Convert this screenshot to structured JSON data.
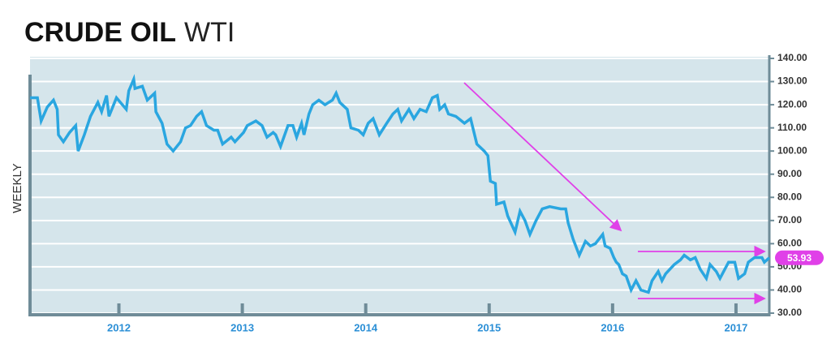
{
  "chart_data": {
    "type": "line",
    "title": "CRUDE OIL",
    "subtitle": "WTI",
    "ylabel": "WEEKLY",
    "color": "#2aa6e0",
    "grid": true,
    "xlim": [
      2011.28,
      2017.27
    ],
    "xticks": [
      2012,
      2013,
      2014,
      2015,
      2016,
      2017
    ],
    "ylim": [
      30,
      140
    ],
    "yticks": [
      {
        "value": 30,
        "label": "30.00"
      },
      {
        "value": 40,
        "label": "40.00"
      },
      {
        "value": 50,
        "label": "50.00"
      },
      {
        "value": 60,
        "label": "60.00"
      },
      {
        "value": 70,
        "label": "70.00"
      },
      {
        "value": 80,
        "label": "80.00"
      },
      {
        "value": 90,
        "label": "90.00"
      },
      {
        "value": 100,
        "label": "100.00"
      },
      {
        "value": 110,
        "label": "110.00"
      },
      {
        "value": 120,
        "label": "120.00"
      },
      {
        "value": 130,
        "label": "130.00"
      },
      {
        "value": 140,
        "label": "140.00"
      }
    ],
    "x": [
      2011.28,
      2011.34,
      2011.37,
      2011.42,
      2011.47,
      2011.5,
      2011.51,
      2011.55,
      2011.6,
      2011.65,
      2011.67,
      2011.72,
      2011.77,
      2011.83,
      2011.86,
      2011.9,
      2011.92,
      2011.98,
      2012.06,
      2012.08,
      2012.12,
      2012.13,
      2012.19,
      2012.23,
      2012.29,
      2012.3,
      2012.35,
      2012.39,
      2012.44,
      2012.5,
      2012.54,
      2012.58,
      2012.63,
      2012.67,
      2012.71,
      2012.77,
      2012.8,
      2012.84,
      2012.91,
      2012.94,
      2013.01,
      2013.04,
      2013.11,
      2013.16,
      2013.2,
      2013.25,
      2013.27,
      2013.31,
      2013.37,
      2013.41,
      2013.44,
      2013.48,
      2013.5,
      2013.54,
      2013.57,
      2013.62,
      2013.67,
      2013.73,
      2013.76,
      2013.79,
      2013.85,
      2013.88,
      2013.94,
      2013.98,
      2014.02,
      2014.06,
      2014.11,
      2014.17,
      2014.22,
      2014.26,
      2014.29,
      2014.35,
      2014.39,
      2014.44,
      2014.49,
      2014.54,
      2014.58,
      2014.6,
      2014.64,
      2014.67,
      2014.73,
      2014.8,
      2014.85,
      2014.9,
      2014.96,
      2014.99,
      2015.01,
      2015.05,
      2015.06,
      2015.12,
      2015.15,
      2015.21,
      2015.25,
      2015.29,
      2015.33,
      2015.38,
      2015.43,
      2015.49,
      2015.58,
      2015.62,
      2015.64,
      2015.68,
      2015.73,
      2015.78,
      2015.82,
      2015.86,
      2015.92,
      2015.94,
      2015.98,
      2016.01,
      2016.03,
      2016.05,
      2016.08,
      2016.11,
      2016.15,
      2016.19,
      2016.23,
      2016.29,
      2016.32,
      2016.37,
      2016.4,
      2016.43,
      2016.5,
      2016.55,
      2016.58,
      2016.63,
      2016.67,
      2016.71,
      2016.76,
      2016.79,
      2016.84,
      2016.87,
      2016.91,
      2016.94,
      2016.99,
      2017.02,
      2017.07,
      2017.1,
      2017.15,
      2017.21,
      2017.23,
      2017.27
    ],
    "values": [
      123,
      123,
      113,
      119,
      122,
      118,
      107,
      104,
      108,
      111,
      100,
      107,
      115,
      121,
      117,
      124,
      115,
      123,
      118,
      126,
      131,
      127,
      128,
      122,
      125,
      117,
      112,
      103,
      100,
      104,
      110,
      111,
      115,
      117,
      111,
      109,
      109,
      103,
      106,
      104,
      108,
      111,
      113,
      111,
      106,
      108,
      107,
      102,
      111,
      111,
      106,
      112,
      107,
      116,
      120,
      122,
      120,
      122,
      125,
      121,
      118,
      110,
      109,
      107,
      112,
      114,
      107,
      112,
      116,
      118,
      113,
      118,
      114,
      118,
      117,
      123,
      124,
      118,
      120,
      116,
      115,
      112,
      114,
      103,
      100,
      98,
      87,
      86,
      77,
      78,
      72,
      65,
      74,
      70,
      64,
      70,
      75,
      76,
      75,
      75,
      69,
      62,
      55,
      61,
      59,
      60,
      64,
      59,
      58,
      54,
      52,
      51,
      47,
      46,
      40,
      44,
      40,
      39,
      44,
      48,
      44,
      47,
      51,
      53,
      55,
      53,
      54,
      49,
      45,
      51,
      48,
      45,
      49,
      52,
      52,
      45,
      47,
      52,
      54,
      54,
      52,
      53.93
    ]
  }
}
